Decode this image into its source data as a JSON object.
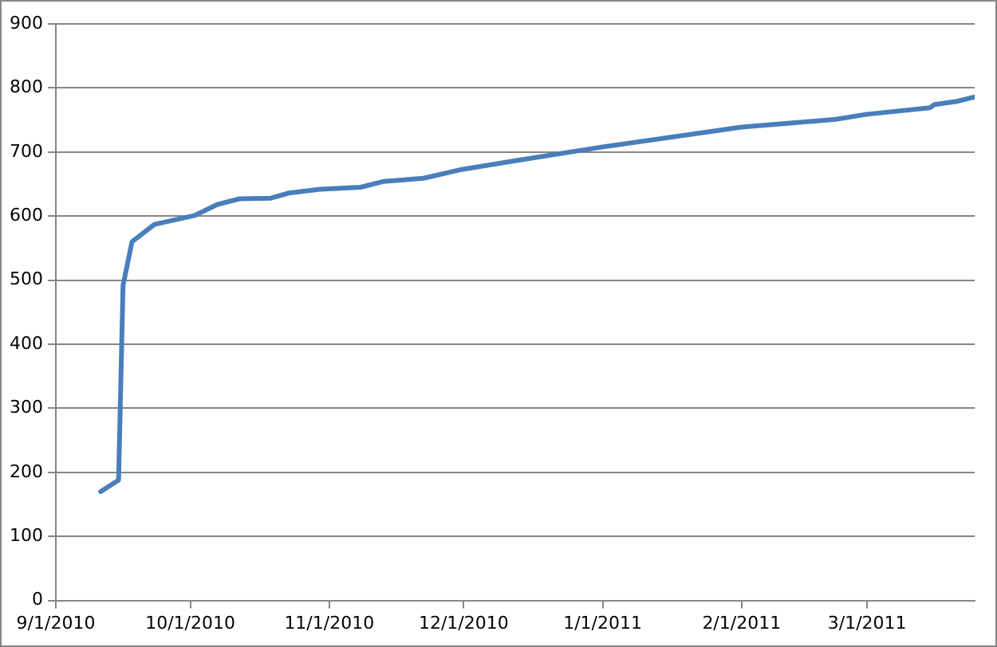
{
  "chart_data": {
    "type": "line",
    "x": [
      "2010-09-11",
      "2010-09-15",
      "2010-09-16",
      "2010-09-18",
      "2010-09-23",
      "2010-10-02",
      "2010-10-07",
      "2010-10-12",
      "2010-10-19",
      "2010-10-23",
      "2010-10-30",
      "2010-11-08",
      "2010-11-13",
      "2010-11-22",
      "2010-11-30",
      "2010-12-13",
      "2011-01-01",
      "2011-02-01",
      "2011-02-22",
      "2011-03-01",
      "2011-03-15",
      "2011-03-16",
      "2011-03-21",
      "2011-03-25"
    ],
    "series": [
      {
        "color": "#4a7ebb",
        "values": [
          170,
          188,
          492,
          560,
          587,
          601,
          618,
          627,
          628,
          636,
          642,
          645,
          654,
          659,
          672,
          687,
          708,
          739,
          751,
          759,
          769,
          774,
          779,
          786
        ]
      }
    ],
    "xlim": [
      "2010-09-01",
      "2011-03-25"
    ],
    "xticks": [
      {
        "value": "2010-09-01",
        "label": "9/1/2010"
      },
      {
        "value": "2010-10-01",
        "label": "10/1/2010"
      },
      {
        "value": "2010-11-01",
        "label": "11/1/2010"
      },
      {
        "value": "2010-12-01",
        "label": "12/1/2010"
      },
      {
        "value": "2011-01-01",
        "label": "1/1/2011"
      },
      {
        "value": "2011-02-01",
        "label": "2/1/2011"
      },
      {
        "value": "2011-03-01",
        "label": "3/1/2011"
      }
    ],
    "ylim": [
      0,
      900
    ],
    "yticks": [
      0,
      100,
      200,
      300,
      400,
      500,
      600,
      700,
      800,
      900
    ],
    "grid": "y",
    "legend": false,
    "marker": "none",
    "line_style": "solid"
  }
}
